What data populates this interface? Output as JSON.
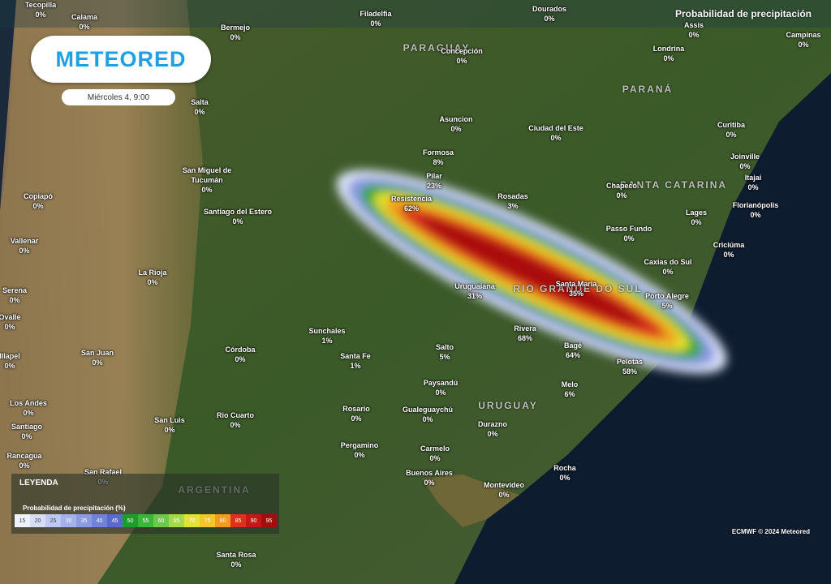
{
  "header": {
    "logo": "METEORED",
    "date": "Miércoles 4, 9:00",
    "layer": "Probabilidad de precipitación"
  },
  "regions": [
    "PARAGUAY",
    "PARANÁ",
    "SANTA CATARINA",
    "RIO GRANDE DO SUL",
    "URUGUAY",
    "ARGENTINA"
  ],
  "cities": [
    {
      "name": "Tecopilla",
      "value": "0%"
    },
    {
      "name": "Calama",
      "value": "0%"
    },
    {
      "name": "Bermejo",
      "value": "0%"
    },
    {
      "name": "Filadelfia",
      "value": "0%"
    },
    {
      "name": "Dourados",
      "value": "0%"
    },
    {
      "name": "Assis",
      "value": "0%"
    },
    {
      "name": "Campinas",
      "value": "0%"
    },
    {
      "name": "Concepción",
      "value": "0%"
    },
    {
      "name": "Londrina",
      "value": "0%"
    },
    {
      "name": "Salta",
      "value": "0%"
    },
    {
      "name": "Asuncion",
      "value": "0%"
    },
    {
      "name": "Ciudad del Este",
      "value": "0%"
    },
    {
      "name": "Curitiba",
      "value": "0%"
    },
    {
      "name": "Formosa",
      "value": "8%"
    },
    {
      "name": "Joinville",
      "value": "0%"
    },
    {
      "name": "Itajaí",
      "value": "0%"
    },
    {
      "name": "San Miguel de Tucumán",
      "value": "0%"
    },
    {
      "name": "Pilar",
      "value": "23%"
    },
    {
      "name": "Rosadas",
      "value": "3%"
    },
    {
      "name": "Chapecó",
      "value": "0%"
    },
    {
      "name": "Copiapó",
      "value": "0%"
    },
    {
      "name": "Resistencia",
      "value": "62%"
    },
    {
      "name": "Santiago del Estero",
      "value": "0%"
    },
    {
      "name": "Florianópolis",
      "value": "0%"
    },
    {
      "name": "Lages",
      "value": "0%"
    },
    {
      "name": "Passo Fundo",
      "value": "0%"
    },
    {
      "name": "Vallenar",
      "value": "0%"
    },
    {
      "name": "Criciúma",
      "value": "0%"
    },
    {
      "name": "La Rioja",
      "value": "0%"
    },
    {
      "name": "Caxias do Sul",
      "value": "0%"
    },
    {
      "name": "Santa Maria",
      "value": "35%"
    },
    {
      "name": "Serena",
      "value": "0%"
    },
    {
      "name": "Uruguaiana",
      "value": "31%"
    },
    {
      "name": "Porto Alegre",
      "value": "5%"
    },
    {
      "name": "Ovalle",
      "value": "0%"
    },
    {
      "name": "Sunchales",
      "value": "1%"
    },
    {
      "name": "Rivera",
      "value": "68%"
    },
    {
      "name": "Illapel",
      "value": "0%"
    },
    {
      "name": "San Juan",
      "value": "0%"
    },
    {
      "name": "Córdoba",
      "value": "0%"
    },
    {
      "name": "Salto",
      "value": "5%"
    },
    {
      "name": "Bagé",
      "value": "64%"
    },
    {
      "name": "Santa Fe",
      "value": "1%"
    },
    {
      "name": "Pelotas",
      "value": "58%"
    },
    {
      "name": "Paysandú",
      "value": "0%"
    },
    {
      "name": "Melo",
      "value": "6%"
    },
    {
      "name": "Los Andes",
      "value": "0%"
    },
    {
      "name": "Gualeguaychú",
      "value": "0%"
    },
    {
      "name": "Rosario",
      "value": "0%"
    },
    {
      "name": "Rio Cuarto",
      "value": "0%"
    },
    {
      "name": "San Luis",
      "value": "0%"
    },
    {
      "name": "Santiago",
      "value": "0%"
    },
    {
      "name": "Durazno",
      "value": "0%"
    },
    {
      "name": "Pergamino",
      "value": "0%"
    },
    {
      "name": "Carmelo",
      "value": "0%"
    },
    {
      "name": "Rancagua",
      "value": "0%"
    },
    {
      "name": "Buenos Aires",
      "value": "0%"
    },
    {
      "name": "San Rafael",
      "value": "0%"
    },
    {
      "name": "Rocha",
      "value": "0%"
    },
    {
      "name": "Montevideo",
      "value": "0%"
    },
    {
      "name": "Santa Rosa",
      "value": "0%"
    }
  ],
  "legend": {
    "title": "LEYENDA",
    "subtitle": "Probabilidad de precipitación (%)",
    "steps": [
      {
        "value": 15,
        "color": "#eef2fb"
      },
      {
        "value": 20,
        "color": "#d6def6"
      },
      {
        "value": 25,
        "color": "#bdc9f0"
      },
      {
        "value": 30,
        "color": "#a3b2ea"
      },
      {
        "value": 35,
        "color": "#8a9be2"
      },
      {
        "value": 40,
        "color": "#7183d8"
      },
      {
        "value": 45,
        "color": "#5a6acc"
      },
      {
        "value": 50,
        "color": "#1c9f2a"
      },
      {
        "value": 55,
        "color": "#3cb63a"
      },
      {
        "value": 60,
        "color": "#6cc94a"
      },
      {
        "value": 65,
        "color": "#a5d94c"
      },
      {
        "value": 70,
        "color": "#e4e333"
      },
      {
        "value": 75,
        "color": "#f4c62b"
      },
      {
        "value": 80,
        "color": "#f09c20"
      },
      {
        "value": 85,
        "color": "#dd311c"
      },
      {
        "value": 90,
        "color": "#c51717"
      },
      {
        "value": 95,
        "color": "#a50d0d"
      }
    ]
  },
  "credit": "ECMWF © 2024 Meteored"
}
